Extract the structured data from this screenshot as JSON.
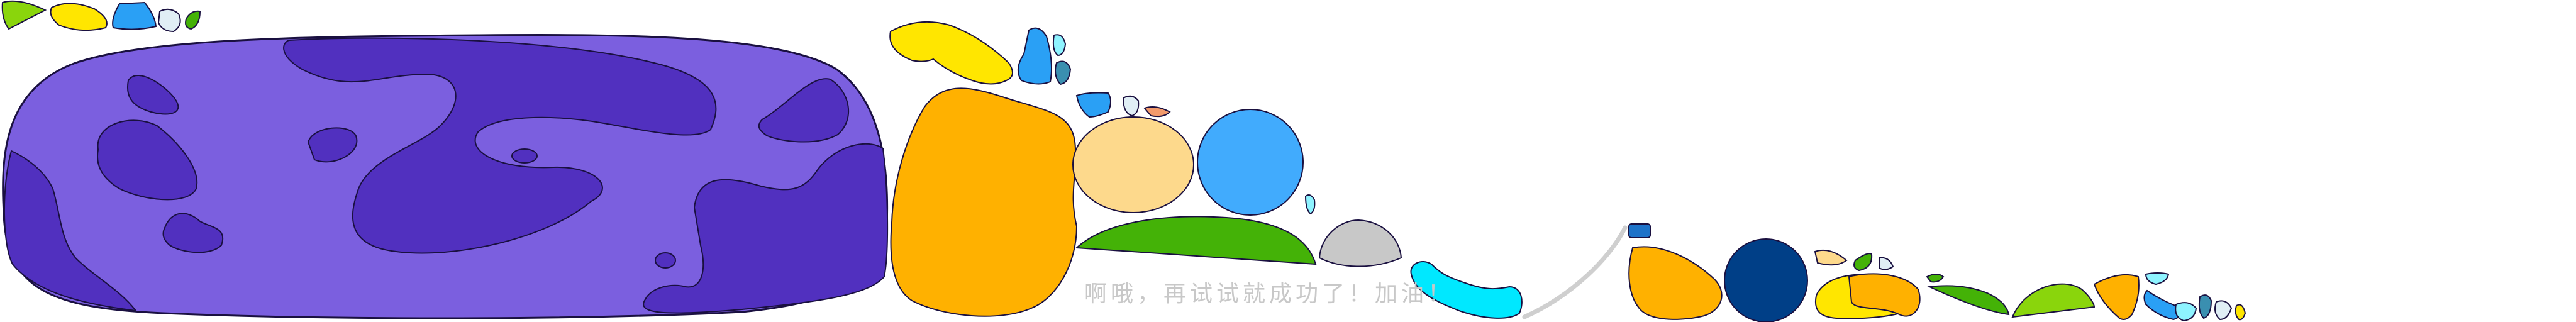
{
  "caption": "啊哦，再试试就成功了！加油！",
  "colors": {
    "background": "#ffffff",
    "stone_fill": "#7b5fdf",
    "stone_spots": "#5130bf",
    "outline": "#1a1040",
    "yellow": "#ffe600",
    "orange": "#ffb100",
    "light_orange": "#fdd98c",
    "blue": "#2aa0f5",
    "sky_blue": "#41abfd",
    "dark_blue": "#003f87",
    "cyan": "#00e8ff",
    "green": "#44b207",
    "lime": "#8ad50c",
    "light_grey": "#c8c8c8",
    "pale_blue": "#e0eef5",
    "teal": "#3a8fb0",
    "peach": "#f29a6b",
    "caption_color": "#c8c8c8"
  }
}
